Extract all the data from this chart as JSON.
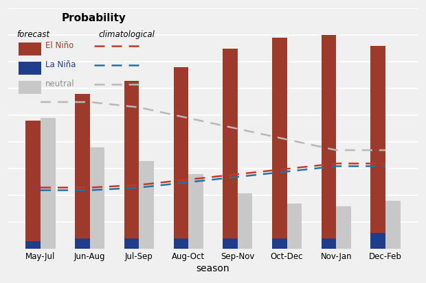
{
  "seasons": [
    "May-Jul",
    "Jun-Aug",
    "Jul-Sep",
    "Aug-Oct",
    "Sep-Nov",
    "Oct-Dec",
    "Nov-Jan",
    "Dec-Feb"
  ],
  "el_nino": [
    0.48,
    0.58,
    0.63,
    0.68,
    0.75,
    0.79,
    0.8,
    0.76
  ],
  "la_nina": [
    0.03,
    0.04,
    0.04,
    0.04,
    0.04,
    0.04,
    0.04,
    0.06
  ],
  "neutral": [
    0.49,
    0.38,
    0.33,
    0.28,
    0.21,
    0.17,
    0.16,
    0.18
  ],
  "clim_el_nino": [
    0.23,
    0.23,
    0.24,
    0.26,
    0.28,
    0.3,
    0.32,
    0.32
  ],
  "clim_la_nina": [
    0.22,
    0.22,
    0.23,
    0.25,
    0.27,
    0.29,
    0.31,
    0.31
  ],
  "clim_neutral": [
    0.55,
    0.55,
    0.53,
    0.49,
    0.45,
    0.41,
    0.37,
    0.37
  ],
  "el_nino_color": "#9e3a2b",
  "la_nina_color": "#1f3d8a",
  "neutral_color": "#c8c8c8",
  "clim_el_nino_color": "#c0392b",
  "clim_la_nina_color": "#2471a3",
  "clim_neutral_color": "#b8b8b8",
  "bg_color": "#f0f0f0",
  "grid_color": "#ffffff",
  "title": "Probability",
  "xlabel": "season",
  "label_el_nino": "El Niño",
  "label_la_nina": "La Niña",
  "label_neutral": "neutral",
  "label_forecast": "forecast",
  "label_climatological": "climatological",
  "ylim": [
    0,
    0.9
  ]
}
